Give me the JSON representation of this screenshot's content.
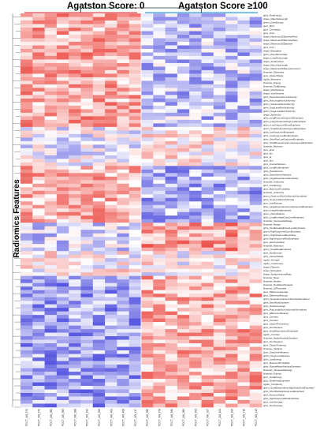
{
  "chart_data": {
    "type": "heatmap",
    "title": "",
    "ylabel": "Radiomics Features",
    "groups": [
      {
        "name": "Agatston Score: 0",
        "color": "#e0434d",
        "columns": 10
      },
      {
        "name": "Agatston Score ≥100",
        "color": "#2d9fd8",
        "columns": 10
      }
    ],
    "colormap": [
      "#2222d6",
      "#ffffff",
      "#e81f16"
    ],
    "value_range": [
      -3,
      3
    ],
    "columns": [
      "PCCT_AN_374",
      "PCCT_AN_379",
      "PCCT_AN_382",
      "PCCT_AN_383",
      "PCCT_AN_388",
      "PCCT_AN_392",
      "PCCT_AN_396",
      "PCCT_AN_404",
      "PCCT_AN_408",
      "PCCT_AN_417",
      "PCCT_AN_369",
      "PCCT_AN_376",
      "PCCT_AN_384",
      "PCCT_AN_389",
      "PCCT_AN_393",
      "PCCT_AN_397",
      "PCCT_AN_401",
      "PCCT_AN_405",
      "PCCT_AN_410",
      "PCCT_AN_413"
    ],
    "features": [
      "glrlm_RunEntropy",
      "shape_MajorAxisLength",
      "glszm_ZoneEntropy",
      "glcm_MCC",
      "glcm_Correlation",
      "glcm_Imc2",
      "shape_Maximum2DDiameterRow",
      "shape_Maximum2DDiameterSlice",
      "shape_Maximum3DDiameter",
      "glcm_Imc1",
      "shape_Elongation",
      "glszm_ZonePercentage",
      "shape_LeastAxisLength",
      "shape_SurfaceArea",
      "shape_MinorAxisLength",
      "shape_Maximum2DDiameterColumn",
      "firstorder_Skewness",
      "glcm_ClusterShade",
      "ngtdm_Busyness",
      "firstorder_Energy",
      "firstorder_TotalEnergy",
      "shape_MeshVolume",
      "shape_VoxelVolume",
      "gldm_DependenceNonUniformity",
      "glrlm_RunLengthNonUniformity",
      "glszm_SizeZoneNonUniformity",
      "glrlm_GrayLevelNonUniformity",
      "glszm_GrayLevelNonUniformity",
      "shape_Sphericity",
      "glrlm_LongRunLowGrayLevelEmphasis",
      "glszm_LargeAreaLowGrayLevelEmphasis",
      "glszm_LowGrayLevelZoneEmphasis",
      "glszm_SmallAreaLowGrayLevelEmphasis",
      "gldm_LowGrayLevelEmphasis",
      "glrlm_LowGrayLevelRunEmphasis",
      "glrlm_ShortRunLowGrayLevelEmphasis",
      "gldm_SmallDependenceLowGrayLevelEmphasis",
      "firstorder_Minimum",
      "glcm_Idmn",
      "glcm_Idn",
      "glcm_Id",
      "glcm_Idm",
      "glcm_InverseVariance",
      "glrlm_LongRunEmphasis",
      "glrlm_RunVariance",
      "gldm_DependenceVariance",
      "gldm_LargeDependenceEmphasis",
      "firstorder_Uniformity",
      "glcm_JointEnergy",
      "glcm_MaximumProbability",
      "firstorder_Uniformity",
      "glszm_GrayLevelNonUniformityNormalized",
      "glrlm_GrayLevelNonUniformity",
      "glcm_JointEntropy",
      "gldm_LargeDependenceLowGrayLevelEmphasis",
      "glszm_LargeAreaEmphasis",
      "glszm_ZoneVariance",
      "glrlm_LongRunHighGrayLevelEmphasis",
      "firstorder_InterquartileRange",
      "firstorder_Range",
      "glrlm_SmallAreaHighGrayLevelEmphasis",
      "glszm_HighGrayLevelZoneEmphasis",
      "glszm_HighGrayLevelEmphasis",
      "glrlm_HighGrayLevelRunEmphasis",
      "glcm_Autocorrelation",
      "firstorder_Maximum",
      "glszm_SmallAreaEmphasis",
      "glcm_SumEntropy",
      "glrlm_ClusterShade",
      "ngtdm_Strength",
      "ngtdm_Coarseness",
      "shape_Flatness",
      "shape_Elongation",
      "shape_SurfaceVolumeRatio",
      "firstorder_Mean",
      "firstorder_Median",
      "firstorder_RootMeanSquared",
      "firstorder_10Percentile",
      "glcm_DifferenceAverage",
      "glcm_DifferenceEntropy",
      "glszm_DependenceNonUniformityNormalized",
      "glrlm_ShortRunEmphasis",
      "gldm_RunPercentage",
      "glrlm_RunLengthNonUniformityNormalized",
      "glcm_DifferenceVariance",
      "glcm_Contrast",
      "glcm_Contrast",
      "glcm_ClusterProminence",
      "glcm_SumSquares",
      "glcm_SmallDependenceEmphasis",
      "ngtdm_Contrast",
      "firstorder_MeanAbsoluteDeviation",
      "glcm_SumSquares",
      "glcm_ClusterTendency",
      "firstorder_Variance",
      "glcm_GrayLevelVariance",
      "glszm_GrayLevelVariance",
      "gldm_JointEnergy",
      "glcm_MaximumProbability",
      "glrlm_RobustMeanAbsoluteDeviation",
      "firstorder_InterquartileRange",
      "firstorder_Entropy",
      "glcm_SumEntropy",
      "glcm_SmallAreaEmphasis",
      "ngtdm_Complexity",
      "glszm_SmallDependenceHighGrayLevelEmphasis",
      "glrlm_ShortRunHighGrayLevelEmphasis",
      "glcm_Autocorrelation",
      "glrlm_HighGrayLevelRunEmphasis",
      "glcm_JointAverage",
      "glcm_SumAverage"
    ]
  }
}
